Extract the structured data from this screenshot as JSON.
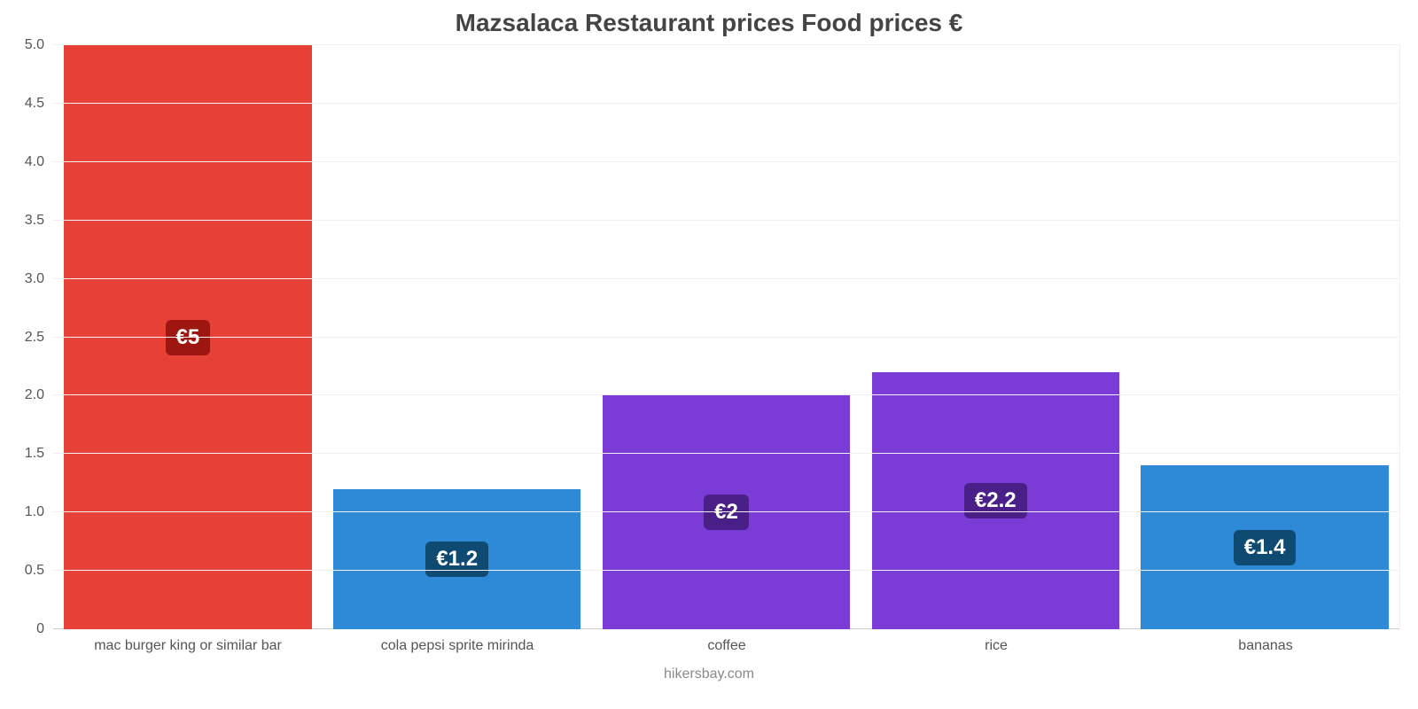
{
  "chart": {
    "type": "bar",
    "title": "Mazsalaca Restaurant prices Food prices €",
    "title_fontsize": 28,
    "title_color": "#444444",
    "attribution": "hikersbay.com",
    "attribution_color": "#8a8a8a",
    "background_color": "#ffffff",
    "grid_color": "#f0f0f0",
    "baseline_color": "#cccccc",
    "axis_label_color": "#555555",
    "axis_label_fontsize": 16,
    "value_label_fontsize": 24,
    "value_label_text_color": "#ffffff",
    "ylim": [
      0,
      5.0
    ],
    "ytick_step": 0.5,
    "yticks": [
      "0",
      "0.5",
      "1.0",
      "1.5",
      "2.0",
      "2.5",
      "3.0",
      "3.5",
      "4.0",
      "4.5",
      "5.0"
    ],
    "bar_width_pct": 92,
    "categories": [
      "mac burger king or similar bar",
      "cola pepsi sprite mirinda",
      "coffee",
      "rice",
      "bananas"
    ],
    "values": [
      5.0,
      1.2,
      2.0,
      2.2,
      1.4
    ],
    "value_labels": [
      "€5",
      "€1.2",
      "€2",
      "€2.2",
      "€1.4"
    ],
    "bar_colors": [
      "#e74037",
      "#2e89d6",
      "#7a3bd6",
      "#7a3bd6",
      "#2e89d6"
    ],
    "badge_colors": [
      "#9e1610",
      "#0f4a72",
      "#4a1f87",
      "#4a1f87",
      "#0f4a72"
    ]
  }
}
